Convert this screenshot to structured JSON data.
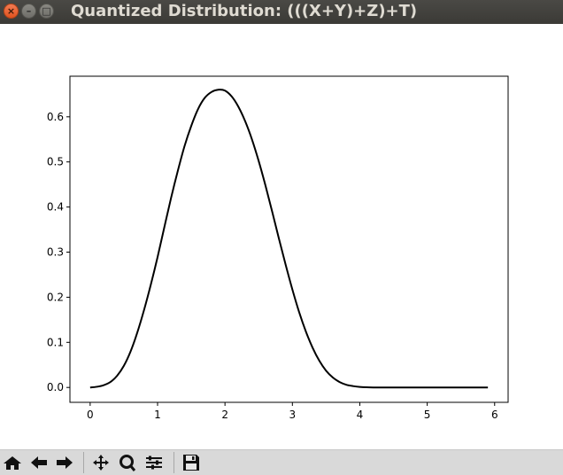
{
  "window": {
    "title": "Quantized Distribution: (((X+Y)+Z)+T)",
    "buttons": [
      "close",
      "minimize",
      "maximize"
    ]
  },
  "toolbar": {
    "items": [
      {
        "name": "home-icon",
        "tooltip": ""
      },
      {
        "name": "back-arrow-icon",
        "tooltip": ""
      },
      {
        "name": "forward-arrow-icon",
        "tooltip": ""
      },
      {
        "name": "pan-icon",
        "tooltip": ""
      },
      {
        "name": "zoom-icon",
        "tooltip": ""
      },
      {
        "name": "configure-subplots-icon",
        "tooltip": ""
      },
      {
        "name": "save-icon",
        "tooltip": ""
      }
    ]
  },
  "chart_data": {
    "type": "line",
    "title": "",
    "xlabel": "",
    "ylabel": "",
    "xlim": [
      -0.3,
      6.2
    ],
    "ylim": [
      -0.033,
      0.69
    ],
    "xticks": [
      0,
      1,
      2,
      3,
      4,
      5,
      6
    ],
    "xtick_labels": [
      "0",
      "1",
      "2",
      "3",
      "4",
      "5",
      "6"
    ],
    "yticks": [
      0.0,
      0.1,
      0.2,
      0.3,
      0.4,
      0.5,
      0.6
    ],
    "ytick_labels": [
      "0.0",
      "0.1",
      "0.2",
      "0.3",
      "0.4",
      "0.5",
      "0.6"
    ],
    "grid": false,
    "series": [
      {
        "color": "#000000",
        "x": [
          0.0,
          0.1,
          0.2,
          0.3,
          0.4,
          0.5,
          0.6,
          0.7,
          0.8,
          0.9,
          1.0,
          1.1,
          1.2,
          1.3,
          1.4,
          1.5,
          1.6,
          1.7,
          1.8,
          1.9,
          2.0,
          2.1,
          2.2,
          2.3,
          2.4,
          2.5,
          2.6,
          2.7,
          2.8,
          2.9,
          3.0,
          3.1,
          3.2,
          3.3,
          3.4,
          3.5,
          3.6,
          3.7,
          3.8,
          3.9,
          4.0,
          4.1,
          4.2,
          4.4,
          4.6,
          4.8,
          5.0,
          5.2,
          5.4,
          5.6,
          5.8,
          5.9
        ],
        "y": [
          0.0,
          0.0015,
          0.005,
          0.012,
          0.026,
          0.048,
          0.08,
          0.122,
          0.172,
          0.228,
          0.289,
          0.355,
          0.42,
          0.48,
          0.535,
          0.58,
          0.617,
          0.642,
          0.655,
          0.66,
          0.658,
          0.645,
          0.622,
          0.59,
          0.55,
          0.502,
          0.448,
          0.39,
          0.33,
          0.272,
          0.217,
          0.167,
          0.124,
          0.088,
          0.059,
          0.037,
          0.022,
          0.012,
          0.006,
          0.003,
          0.0012,
          0.0003,
          0.0,
          0.0,
          0.0,
          0.0,
          0.0,
          0.0,
          0.0,
          0.0,
          0.0,
          0.0
        ]
      }
    ]
  }
}
